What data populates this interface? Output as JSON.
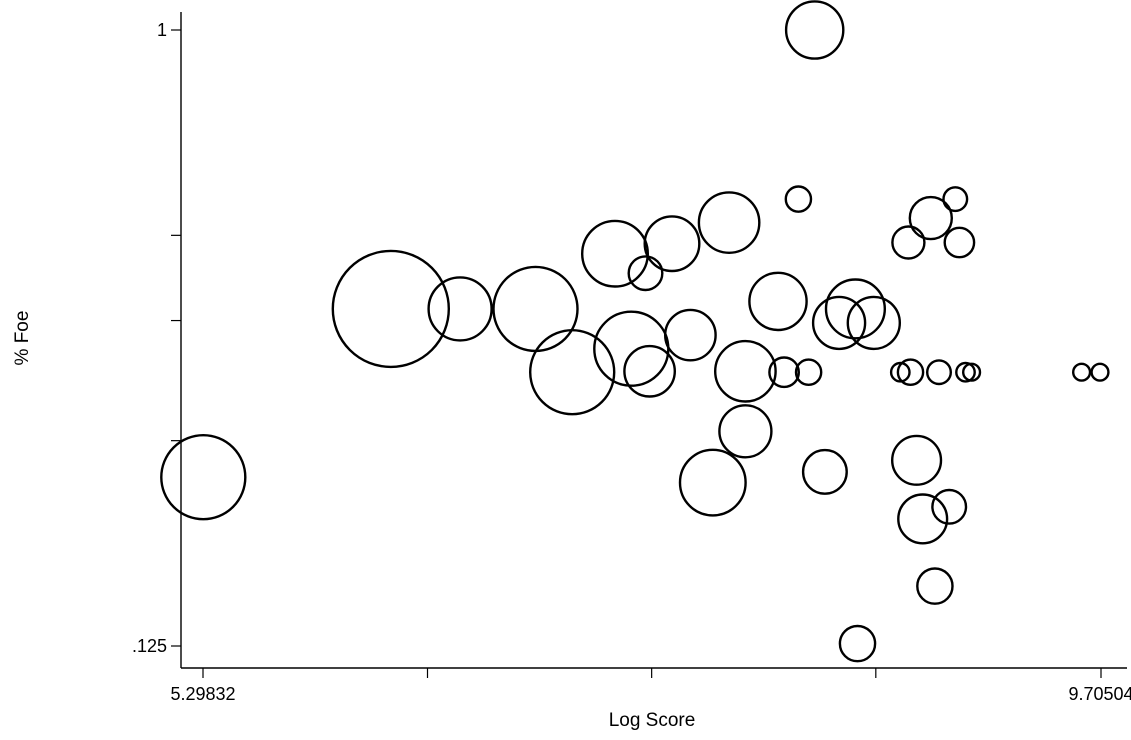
{
  "chart_data": {
    "type": "scatter",
    "title": "",
    "xlabel": "Log Score",
    "ylabel": "% Foe",
    "x_scale": "linear",
    "y_scale": "log2",
    "xlim": [
      5.29832,
      9.70504
    ],
    "ylim": [
      0.125,
      1
    ],
    "x_tick_labels": [
      "5.29832",
      "",
      "",
      "",
      "9.70504"
    ],
    "x_tick_values": [
      5.29832,
      6.4,
      7.5,
      8.6,
      9.70504
    ],
    "y_tick_labels": [
      ".125",
      "",
      "",
      "",
      "1"
    ],
    "y_tick_values": [
      0.125,
      0.25,
      0.375,
      0.5,
      1
    ],
    "grid": false,
    "legend": "none",
    "marker": "hollow circle (size weighted)",
    "points": [
      {
        "x": 5.3,
        "y": 0.221,
        "s": 1.0
      },
      {
        "x": 6.22,
        "y": 0.39,
        "s": 1.38
      },
      {
        "x": 6.56,
        "y": 0.39,
        "s": 0.75
      },
      {
        "x": 6.93,
        "y": 0.39,
        "s": 1.0
      },
      {
        "x": 7.11,
        "y": 0.315,
        "s": 1.0
      },
      {
        "x": 7.32,
        "y": 0.47,
        "s": 0.78
      },
      {
        "x": 7.47,
        "y": 0.44,
        "s": 0.4
      },
      {
        "x": 7.4,
        "y": 0.341,
        "s": 0.88
      },
      {
        "x": 7.49,
        "y": 0.316,
        "s": 0.6
      },
      {
        "x": 7.6,
        "y": 0.486,
        "s": 0.65
      },
      {
        "x": 7.69,
        "y": 0.357,
        "s": 0.6
      },
      {
        "x": 7.8,
        "y": 0.217,
        "s": 0.78
      },
      {
        "x": 7.88,
        "y": 0.522,
        "s": 0.72
      },
      {
        "x": 7.96,
        "y": 0.258,
        "s": 0.62
      },
      {
        "x": 7.96,
        "y": 0.316,
        "s": 0.72
      },
      {
        "x": 8.12,
        "y": 0.4,
        "s": 0.68
      },
      {
        "x": 8.15,
        "y": 0.315,
        "s": 0.35
      },
      {
        "x": 8.22,
        "y": 0.565,
        "s": 0.3
      },
      {
        "x": 8.27,
        "y": 0.315,
        "s": 0.3
      },
      {
        "x": 8.3,
        "y": 1.0,
        "s": 0.68
      },
      {
        "x": 8.35,
        "y": 0.225,
        "s": 0.52
      },
      {
        "x": 8.5,
        "y": 0.39,
        "s": 0.7
      },
      {
        "x": 8.42,
        "y": 0.372,
        "s": 0.62
      },
      {
        "x": 8.59,
        "y": 0.372,
        "s": 0.62
      },
      {
        "x": 8.51,
        "y": 0.126,
        "s": 0.42
      },
      {
        "x": 8.72,
        "y": 0.315,
        "s": 0.22
      },
      {
        "x": 8.77,
        "y": 0.315,
        "s": 0.3
      },
      {
        "x": 8.76,
        "y": 0.488,
        "s": 0.38
      },
      {
        "x": 8.8,
        "y": 0.234,
        "s": 0.58
      },
      {
        "x": 8.83,
        "y": 0.192,
        "s": 0.58
      },
      {
        "x": 8.87,
        "y": 0.53,
        "s": 0.5
      },
      {
        "x": 8.89,
        "y": 0.153,
        "s": 0.42
      },
      {
        "x": 8.91,
        "y": 0.315,
        "s": 0.28
      },
      {
        "x": 8.96,
        "y": 0.2,
        "s": 0.4
      },
      {
        "x": 8.99,
        "y": 0.565,
        "s": 0.28
      },
      {
        "x": 9.01,
        "y": 0.488,
        "s": 0.35
      },
      {
        "x": 9.04,
        "y": 0.315,
        "s": 0.22
      },
      {
        "x": 9.07,
        "y": 0.315,
        "s": 0.2
      },
      {
        "x": 9.61,
        "y": 0.315,
        "s": 0.2
      },
      {
        "x": 9.7,
        "y": 0.315,
        "s": 0.2
      }
    ]
  }
}
